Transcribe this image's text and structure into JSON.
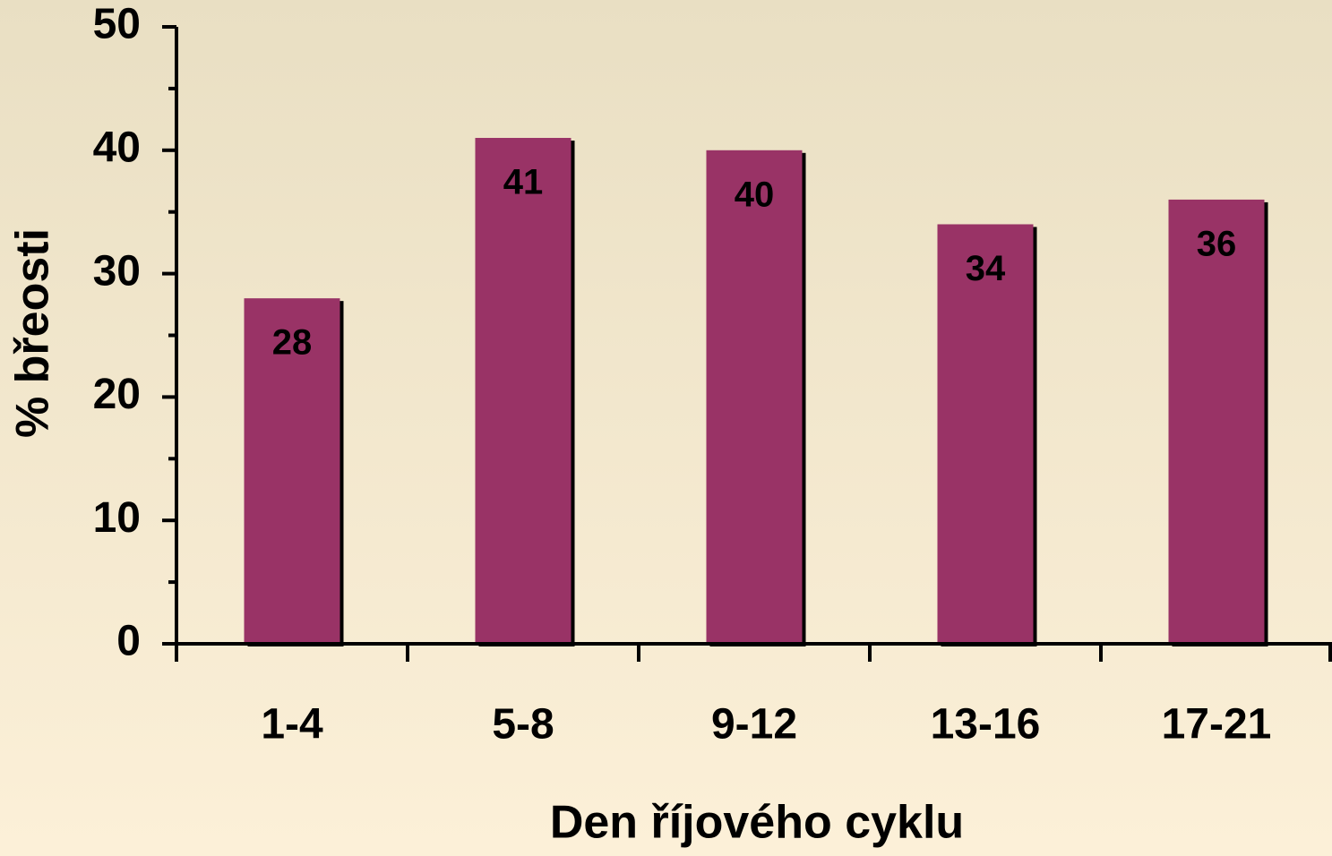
{
  "chart_data": {
    "type": "bar",
    "x_label": "Den říjového cyklu",
    "y_label": "% břeosti",
    "categories": [
      "1-4",
      "5-8",
      "9-12",
      "13-16",
      "17-21"
    ],
    "values": [
      28,
      41,
      40,
      34,
      36
    ],
    "color": "#993366",
    "ylim": [
      0,
      50
    ],
    "yticks": [
      0,
      10,
      20,
      30,
      40,
      50
    ],
    "minor_yticks": [
      5,
      15,
      25,
      35,
      45
    ],
    "grid": false,
    "data_labels": true
  }
}
